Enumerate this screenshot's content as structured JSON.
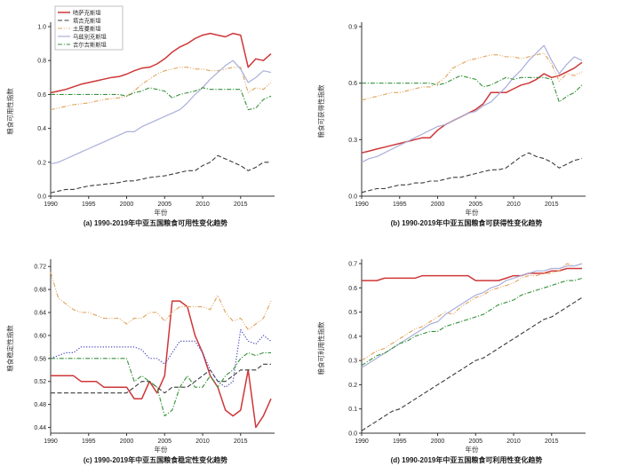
{
  "figure_background": "#ffffff",
  "chart_data": {
    "type": "line",
    "x_label": "年份",
    "x_ticks": [
      1990,
      1995,
      2000,
      2005,
      2010,
      2015
    ],
    "x_range": [
      1990,
      2019
    ],
    "x_step": 1,
    "legend_position": "upper-left",
    "charts": [
      {
        "id": "a",
        "caption": "(a) 1990-2019年中亚五国粮食可用性变化趋势",
        "ylabel": "粮食可用性指数",
        "y_ticks": [
          0.0,
          0.2,
          0.4,
          0.6,
          0.8,
          1.0
        ],
        "y_range": [
          0.0,
          1.0
        ],
        "y_decimals": 1,
        "legend": true,
        "series": [
          {
            "id": "kazakhstan",
            "name": "哈萨克斯坦",
            "color": "#cf3638",
            "dash": "",
            "width": 1.5,
            "values": [
              0.61,
              0.62,
              0.63,
              0.645,
              0.66,
              0.67,
              0.68,
              0.69,
              0.7,
              0.705,
              0.72,
              0.74,
              0.755,
              0.76,
              0.78,
              0.81,
              0.85,
              0.88,
              0.9,
              0.93,
              0.95,
              0.96,
              0.95,
              0.94,
              0.96,
              0.95,
              0.76,
              0.81,
              0.8,
              0.84
            ]
          },
          {
            "id": "tajikistan",
            "name": "塔吉克斯坦",
            "color": "#3b3b3b",
            "dash": "5,2.5",
            "width": 1.1,
            "values": [
              0.02,
              0.03,
              0.04,
              0.04,
              0.05,
              0.06,
              0.065,
              0.07,
              0.075,
              0.08,
              0.09,
              0.09,
              0.1,
              0.11,
              0.115,
              0.12,
              0.13,
              0.14,
              0.15,
              0.15,
              0.18,
              0.2,
              0.24,
              0.22,
              0.2,
              0.18,
              0.15,
              0.17,
              0.2,
              0.2
            ]
          },
          {
            "id": "turkmenistan",
            "name": "土库曼斯坦",
            "color": "#e0a15a",
            "dash": "5,1.8,1,1.8,1,1.8",
            "width": 1.1,
            "values": [
              0.51,
              0.52,
              0.53,
              0.54,
              0.545,
              0.55,
              0.56,
              0.57,
              0.575,
              0.58,
              0.59,
              0.62,
              0.66,
              0.69,
              0.72,
              0.74,
              0.75,
              0.76,
              0.76,
              0.75,
              0.75,
              0.74,
              0.74,
              0.75,
              0.76,
              0.76,
              0.61,
              0.64,
              0.63,
              0.67
            ]
          },
          {
            "id": "uzbekistan",
            "name": "乌兹别克斯坦",
            "color": "#a9afd9",
            "dash": "",
            "width": 1.2,
            "values": [
              0.19,
              0.2,
              0.22,
              0.24,
              0.26,
              0.28,
              0.3,
              0.32,
              0.34,
              0.36,
              0.38,
              0.38,
              0.41,
              0.43,
              0.45,
              0.47,
              0.49,
              0.51,
              0.55,
              0.6,
              0.64,
              0.69,
              0.73,
              0.77,
              0.8,
              0.75,
              0.67,
              0.7,
              0.74,
              0.73
            ]
          },
          {
            "id": "kyrgyzstan",
            "name": "吉尔吉斯斯坦",
            "color": "#36913b",
            "dash": "5,1.8,1.2,1.8",
            "width": 1.1,
            "values": [
              0.6,
              0.6,
              0.6,
              0.6,
              0.6,
              0.6,
              0.6,
              0.6,
              0.6,
              0.6,
              0.59,
              0.61,
              0.62,
              0.64,
              0.63,
              0.62,
              0.58,
              0.6,
              0.61,
              0.62,
              0.64,
              0.63,
              0.63,
              0.63,
              0.63,
              0.63,
              0.51,
              0.52,
              0.57,
              0.59
            ]
          }
        ]
      },
      {
        "id": "b",
        "caption": "(b) 1990-2019年中亚五国粮食可获得性变化趋势",
        "ylabel": "粮食可获得性指数",
        "y_ticks": [
          0.0,
          0.3,
          0.6,
          0.9
        ],
        "y_range": [
          0.0,
          0.9
        ],
        "y_decimals": 1,
        "legend": false,
        "series": [
          {
            "id": "kazakhstan",
            "name": "哈萨克斯坦",
            "color": "#cf3638",
            "dash": "",
            "width": 1.5,
            "values": [
              0.23,
              0.24,
              0.25,
              0.26,
              0.27,
              0.28,
              0.29,
              0.3,
              0.31,
              0.31,
              0.35,
              0.38,
              0.4,
              0.42,
              0.44,
              0.46,
              0.49,
              0.55,
              0.55,
              0.55,
              0.57,
              0.59,
              0.6,
              0.62,
              0.65,
              0.63,
              0.64,
              0.66,
              0.68,
              0.71
            ]
          },
          {
            "id": "tajikistan",
            "name": "塔吉克斯坦",
            "color": "#3b3b3b",
            "dash": "5,2.5",
            "width": 1.1,
            "values": [
              0.02,
              0.03,
              0.04,
              0.04,
              0.05,
              0.06,
              0.06,
              0.07,
              0.07,
              0.08,
              0.08,
              0.09,
              0.1,
              0.1,
              0.11,
              0.12,
              0.13,
              0.14,
              0.14,
              0.15,
              0.18,
              0.21,
              0.23,
              0.21,
              0.2,
              0.18,
              0.15,
              0.17,
              0.19,
              0.2
            ]
          },
          {
            "id": "turkmenistan",
            "name": "土库曼斯坦",
            "color": "#e0a15a",
            "dash": "5,1.8,1,1.8,1,1.8",
            "width": 1.1,
            "values": [
              0.51,
              0.52,
              0.53,
              0.54,
              0.55,
              0.55,
              0.56,
              0.57,
              0.58,
              0.58,
              0.6,
              0.63,
              0.68,
              0.7,
              0.72,
              0.73,
              0.74,
              0.75,
              0.75,
              0.74,
              0.74,
              0.73,
              0.74,
              0.75,
              0.76,
              0.7,
              0.61,
              0.65,
              0.64,
              0.66
            ]
          },
          {
            "id": "uzbekistan",
            "name": "乌兹别克斯坦",
            "color": "#a9afd9",
            "dash": "",
            "width": 1.2,
            "values": [
              0.18,
              0.2,
              0.21,
              0.23,
              0.25,
              0.27,
              0.29,
              0.31,
              0.33,
              0.35,
              0.37,
              0.38,
              0.4,
              0.42,
              0.44,
              0.45,
              0.48,
              0.5,
              0.54,
              0.58,
              0.63,
              0.67,
              0.72,
              0.76,
              0.8,
              0.72,
              0.65,
              0.7,
              0.74,
              0.72
            ]
          },
          {
            "id": "kyrgyzstan",
            "name": "吉尔吉斯斯坦",
            "color": "#36913b",
            "dash": "5,1.8,1.2,1.8",
            "width": 1.1,
            "values": [
              0.6,
              0.6,
              0.6,
              0.6,
              0.6,
              0.6,
              0.6,
              0.6,
              0.6,
              0.6,
              0.59,
              0.6,
              0.62,
              0.64,
              0.63,
              0.62,
              0.58,
              0.59,
              0.61,
              0.63,
              0.62,
              0.63,
              0.63,
              0.63,
              0.63,
              0.62,
              0.5,
              0.53,
              0.55,
              0.59
            ]
          }
        ]
      },
      {
        "id": "c",
        "caption": "(c) 1990-2019年中亚五国粮食稳定性变化趋势",
        "ylabel": "粮食稳定性指数",
        "y_ticks": [
          0.44,
          0.48,
          0.52,
          0.56,
          0.6,
          0.64,
          0.68,
          0.72
        ],
        "y_range": [
          0.43,
          0.725
        ],
        "y_decimals": 2,
        "legend": false,
        "series": [
          {
            "id": "kazakhstan",
            "name": "哈萨克斯坦",
            "color": "#cf3638",
            "dash": "",
            "width": 1.5,
            "values": [
              0.53,
              0.53,
              0.53,
              0.53,
              0.52,
              0.52,
              0.52,
              0.51,
              0.51,
              0.51,
              0.51,
              0.49,
              0.49,
              0.52,
              0.5,
              0.53,
              0.66,
              0.66,
              0.65,
              0.6,
              0.57,
              0.53,
              0.51,
              0.47,
              0.46,
              0.47,
              0.54,
              0.44,
              0.46,
              0.49
            ]
          },
          {
            "id": "tajikistan",
            "name": "塔吉克斯坦",
            "color": "#3b3b3b",
            "dash": "5,2.5",
            "width": 1.1,
            "values": [
              0.5,
              0.5,
              0.5,
              0.5,
              0.5,
              0.5,
              0.5,
              0.5,
              0.5,
              0.5,
              0.5,
              0.51,
              0.52,
              0.52,
              0.51,
              0.5,
              0.51,
              0.51,
              0.51,
              0.52,
              0.53,
              0.54,
              0.52,
              0.52,
              0.53,
              0.54,
              0.54,
              0.54,
              0.55,
              0.55
            ]
          },
          {
            "id": "turkmenistan",
            "name": "土库曼斯坦",
            "color": "#e0a15a",
            "dash": "5,1.8,1,1.8,1,1.8",
            "width": 1.1,
            "values": [
              0.71,
              0.665,
              0.655,
              0.645,
              0.64,
              0.64,
              0.635,
              0.63,
              0.63,
              0.63,
              0.62,
              0.63,
              0.63,
              0.64,
              0.64,
              0.625,
              0.64,
              0.65,
              0.65,
              0.65,
              0.65,
              0.645,
              0.67,
              0.64,
              0.625,
              0.63,
              0.61,
              0.62,
              0.63,
              0.66
            ]
          },
          {
            "id": "uzbekistan",
            "name": "乌兹别克斯坦",
            "color": "#4f50bd",
            "dash": "1.3,1.8",
            "width": 1.2,
            "values": [
              0.56,
              0.565,
              0.57,
              0.57,
              0.58,
              0.58,
              0.58,
              0.58,
              0.58,
              0.58,
              0.58,
              0.58,
              0.575,
              0.56,
              0.56,
              0.55,
              0.57,
              0.59,
              0.59,
              0.59,
              0.57,
              0.54,
              0.52,
              0.51,
              0.52,
              0.61,
              0.59,
              0.585,
              0.6,
              0.59
            ]
          },
          {
            "id": "kyrgyzstan",
            "name": "吉尔吉斯斯坦",
            "color": "#36913b",
            "dash": "5,1.8,1.2,1.8",
            "width": 1.1,
            "values": [
              0.56,
              0.56,
              0.56,
              0.56,
              0.56,
              0.56,
              0.56,
              0.56,
              0.56,
              0.56,
              0.56,
              0.52,
              0.53,
              0.52,
              0.51,
              0.46,
              0.47,
              0.51,
              0.53,
              0.51,
              0.51,
              0.53,
              0.51,
              0.53,
              0.54,
              0.56,
              0.57,
              0.565,
              0.57,
              0.57
            ]
          }
        ]
      },
      {
        "id": "d",
        "caption": "(d) 1990-2019年中亚五国粮食可利用性变化趋势",
        "ylabel": "粮食可利用性指数",
        "y_ticks": [
          0.0,
          0.1,
          0.2,
          0.3,
          0.4,
          0.5,
          0.6,
          0.7
        ],
        "y_range": [
          0.0,
          0.7
        ],
        "y_decimals": 1,
        "legend": false,
        "series": [
          {
            "id": "kazakhstan",
            "name": "哈萨克斯坦",
            "color": "#cf3638",
            "dash": "",
            "width": 1.5,
            "values": [
              0.63,
              0.63,
              0.63,
              0.64,
              0.64,
              0.64,
              0.64,
              0.64,
              0.65,
              0.65,
              0.65,
              0.65,
              0.65,
              0.65,
              0.65,
              0.63,
              0.63,
              0.63,
              0.63,
              0.64,
              0.65,
              0.65,
              0.66,
              0.66,
              0.66,
              0.67,
              0.67,
              0.68,
              0.68,
              0.68
            ]
          },
          {
            "id": "tajikistan",
            "name": "塔吉克斯坦",
            "color": "#3b3b3b",
            "dash": "5,2.5",
            "width": 1.1,
            "values": [
              0.01,
              0.03,
              0.05,
              0.07,
              0.09,
              0.1,
              0.12,
              0.14,
              0.16,
              0.18,
              0.2,
              0.22,
              0.24,
              0.26,
              0.28,
              0.3,
              0.31,
              0.33,
              0.35,
              0.37,
              0.39,
              0.41,
              0.43,
              0.45,
              0.47,
              0.48,
              0.5,
              0.52,
              0.54,
              0.56
            ]
          },
          {
            "id": "turkmenistan",
            "name": "土库曼斯坦",
            "color": "#e0a15a",
            "dash": "5,1.8,1,1.8,1,1.8",
            "width": 1.1,
            "values": [
              0.3,
              0.32,
              0.34,
              0.35,
              0.37,
              0.39,
              0.41,
              0.43,
              0.44,
              0.46,
              0.48,
              0.5,
              0.49,
              0.52,
              0.54,
              0.56,
              0.57,
              0.59,
              0.6,
              0.61,
              0.62,
              0.64,
              0.65,
              0.65,
              0.66,
              0.66,
              0.67,
              0.7,
              0.69,
              0.7
            ]
          },
          {
            "id": "uzbekistan",
            "name": "乌兹别克斯坦",
            "color": "#a9afd9",
            "dash": "",
            "width": 1.2,
            "values": [
              0.27,
              0.29,
              0.31,
              0.33,
              0.35,
              0.37,
              0.39,
              0.41,
              0.43,
              0.45,
              0.46,
              0.49,
              0.51,
              0.53,
              0.55,
              0.57,
              0.58,
              0.6,
              0.61,
              0.63,
              0.64,
              0.65,
              0.66,
              0.67,
              0.67,
              0.68,
              0.68,
              0.69,
              0.69,
              0.7
            ]
          },
          {
            "id": "kyrgyzstan",
            "name": "吉尔吉斯斯坦",
            "color": "#36913b",
            "dash": "5,1.8,1.2,1.8",
            "width": 1.1,
            "values": [
              0.28,
              0.3,
              0.32,
              0.33,
              0.35,
              0.37,
              0.38,
              0.4,
              0.41,
              0.42,
              0.42,
              0.44,
              0.45,
              0.46,
              0.47,
              0.48,
              0.49,
              0.51,
              0.53,
              0.54,
              0.55,
              0.57,
              0.58,
              0.59,
              0.6,
              0.61,
              0.62,
              0.63,
              0.63,
              0.64
            ]
          }
        ]
      }
    ]
  }
}
